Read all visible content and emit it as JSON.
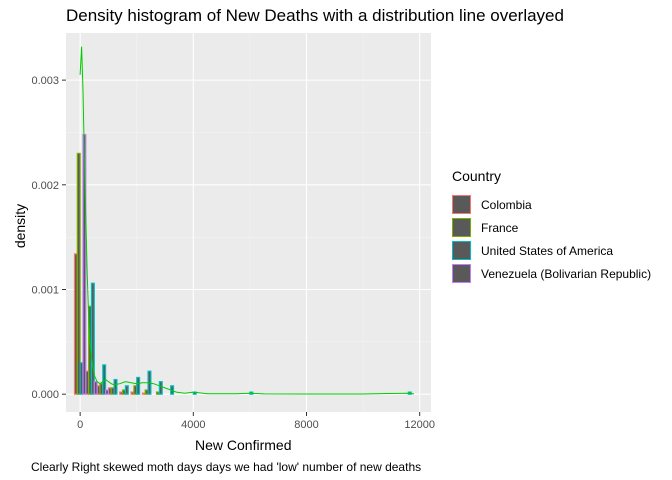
{
  "chart_data": {
    "type": "histogram-density",
    "title": "Density histogram of New Deaths with a distribution line overlayed",
    "xlabel": "New Confirmed",
    "ylabel": "density",
    "caption": "Clearly Right skewed moth days days we had 'low' number of new deaths",
    "xlim": [
      -500,
      12400
    ],
    "ylim": [
      -0.00017,
      0.00345
    ],
    "x_ticks": [
      "0",
      "4000",
      "8000",
      "12000"
    ],
    "y_ticks": [
      "0.000",
      "0.001",
      "0.002",
      "0.003"
    ],
    "grid": true,
    "legend": {
      "title": "Country",
      "position": "right",
      "entries": [
        {
          "name": "Colombia",
          "color": "#F8766D"
        },
        {
          "name": "France",
          "color": "#7CAE00"
        },
        {
          "name": "United States of America",
          "color": "#00BFC4"
        },
        {
          "name": "Venezuela (Bolivarian Republic)",
          "color": "#C77CFF"
        }
      ]
    },
    "bin_width": 400,
    "bin_centers": [
      0,
      400,
      800,
      1200,
      1600,
      2000,
      2400,
      2800,
      3200,
      4000,
      6000,
      11600
    ],
    "series": [
      {
        "name": "Colombia",
        "color": "#F8766D",
        "values": [
          0.00134,
          0.00022,
          8e-05,
          6e-05,
          2e-05,
          2e-05,
          1e-05,
          0.0,
          0.0,
          0.0,
          0.0,
          0.0
        ]
      },
      {
        "name": "France",
        "color": "#7CAE00",
        "values": [
          0.0023,
          0.00084,
          0.0001,
          6e-05,
          4e-05,
          8e-05,
          4e-05,
          2e-05,
          0.0,
          0.0,
          0.0,
          0.0
        ]
      },
      {
        "name": "United States of America",
        "color": "#00BFC4",
        "values": [
          0.0003,
          0.00106,
          0.00028,
          0.00014,
          8e-05,
          0.00016,
          0.00022,
          0.00012,
          8e-05,
          2e-05,
          2e-05,
          2e-05
        ]
      },
      {
        "name": "Venezuela (Bolivarian Republic)",
        "color": "#C77CFF",
        "values": [
          0.00248,
          0.00012,
          4e-05,
          0.0,
          0.0,
          0.0,
          0.0,
          0.0,
          0.0,
          0.0,
          0.0,
          0.0
        ]
      }
    ],
    "density_line": {
      "color": "#00CC00",
      "x": [
        0,
        50,
        100,
        150,
        200,
        250,
        300,
        350,
        400,
        500,
        600,
        700,
        800,
        900,
        1000,
        1100,
        1200,
        1400,
        1600,
        1800,
        2000,
        2200,
        2400,
        2600,
        2800,
        3000,
        3200,
        3400,
        3700,
        4000,
        4500,
        5500,
        6000,
        6500,
        8000,
        10000,
        11600,
        11800
      ],
      "y": [
        0.00305,
        0.00332,
        0.0029,
        0.00225,
        0.0017,
        0.00115,
        0.00075,
        0.00048,
        0.00035,
        0.00018,
        0.00012,
        0.0001,
        0.00012,
        0.00014,
        0.00012,
        0.0001,
        9e-05,
        0.0001,
        0.00012,
        0.00011,
        0.0001,
        0.00011,
        0.00011,
        0.0001,
        8e-05,
        6e-05,
        4e-05,
        2e-05,
        1e-05,
        2e-05,
        5e-06,
        5e-06,
        1e-05,
        3e-06,
        2e-06,
        2e-06,
        1e-05,
        3e-06
      ]
    }
  }
}
